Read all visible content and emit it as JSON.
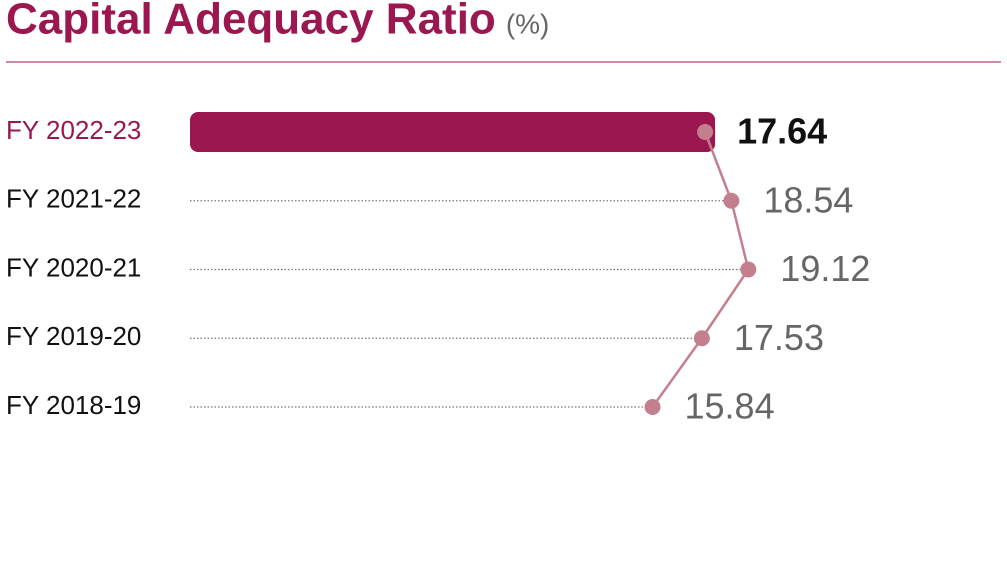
{
  "chart_data": {
    "type": "lollipop",
    "title": "Capital Adequacy Ratio",
    "subtitle": "(%)",
    "categories": [
      "FY 2022-23",
      "FY 2021-22",
      "FY 2020-21",
      "FY 2019-20",
      "FY 2018-19"
    ],
    "values": [
      17.64,
      18.54,
      19.12,
      17.53,
      15.84
    ],
    "highlight_color": "#9b1750",
    "color": "#c47f8f"
  }
}
